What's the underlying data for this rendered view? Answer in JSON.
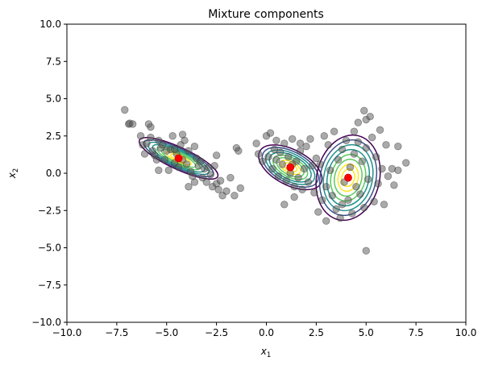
{
  "chart_data": {
    "type": "scatter",
    "title": "Mixture components",
    "xlabel": {
      "base": "x",
      "sub": "1"
    },
    "ylabel": {
      "base": "x",
      "sub": "2"
    },
    "xlim": [
      -10,
      10
    ],
    "ylim": [
      -10,
      10
    ],
    "xticks": [
      "−10.0",
      "−7.5",
      "−5.0",
      "−2.5",
      "0.0",
      "2.5",
      "5.0",
      "7.5",
      "10.0"
    ],
    "yticks": [
      "−10.0",
      "−7.5",
      "−5.0",
      "−2.5",
      "0.0",
      "2.5",
      "5.0",
      "7.5",
      "10.0"
    ],
    "grid": false,
    "point_color": "#555555",
    "mean_color": "#ff0000",
    "contour_colors": [
      "#440154",
      "#3b528b",
      "#21918c",
      "#5ec962",
      "#fde725"
    ],
    "components": [
      {
        "mean": [
          -4.4,
          1.0
        ],
        "sd_major": 1.05,
        "sd_minor": 0.3,
        "angle_deg": -32
      },
      {
        "mean": [
          1.2,
          0.4
        ],
        "sd_major": 0.85,
        "sd_minor": 0.48,
        "angle_deg": -35
      },
      {
        "mean": [
          4.1,
          -0.3
        ],
        "sd_major": 1.3,
        "sd_minor": 0.72,
        "angle_deg": 80
      }
    ],
    "points": [
      [
        -7.1,
        4.25
      ],
      [
        -6.9,
        3.3
      ],
      [
        -6.85,
        3.35
      ],
      [
        -6.7,
        3.3
      ],
      [
        -6.3,
        2.5
      ],
      [
        -6.2,
        1.9
      ],
      [
        -6.1,
        1.3
      ],
      [
        -6.0,
        2.0
      ],
      [
        -5.9,
        3.3
      ],
      [
        -5.8,
        3.1
      ],
      [
        -5.8,
        2.4
      ],
      [
        -5.7,
        1.5
      ],
      [
        -5.6,
        1.2
      ],
      [
        -5.5,
        0.9
      ],
      [
        -5.4,
        2.2
      ],
      [
        -5.3,
        1.7
      ],
      [
        -5.2,
        1.9
      ],
      [
        -5.1,
        0.9
      ],
      [
        -5.0,
        1.5
      ],
      [
        -4.9,
        0.2
      ],
      [
        -4.8,
        1.6
      ],
      [
        -4.7,
        2.5
      ],
      [
        -4.6,
        0.7
      ],
      [
        -4.5,
        1.3
      ],
      [
        -4.4,
        0.4
      ],
      [
        -4.3,
        1.9
      ],
      [
        -4.2,
        0.9
      ],
      [
        -4.1,
        2.2
      ],
      [
        -4.0,
        0.6
      ],
      [
        -3.9,
        1.5
      ],
      [
        -3.8,
        0.1
      ],
      [
        -3.7,
        -0.2
      ],
      [
        -3.6,
        1.8
      ],
      [
        -3.5,
        1.0
      ],
      [
        -3.4,
        0.5
      ],
      [
        -3.3,
        0.8
      ],
      [
        -3.2,
        -0.3
      ],
      [
        -3.1,
        0.3
      ],
      [
        -3.0,
        -0.6
      ],
      [
        -2.9,
        0.4
      ],
      [
        -2.8,
        -0.1
      ],
      [
        -2.7,
        -0.9
      ],
      [
        -2.6,
        0.5
      ],
      [
        -2.5,
        1.2
      ],
      [
        -2.5,
        -0.7
      ],
      [
        -2.4,
        -1.1
      ],
      [
        -2.3,
        -0.5
      ],
      [
        -2.2,
        -1.5
      ],
      [
        -2.0,
        -1.2
      ],
      [
        -1.8,
        -0.3
      ],
      [
        -1.6,
        -1.5
      ],
      [
        -1.5,
        1.7
      ],
      [
        -1.4,
        1.5
      ],
      [
        -1.3,
        -1.0
      ],
      [
        -3.9,
        -0.9
      ],
      [
        -4.6,
        1.6
      ],
      [
        -5.4,
        0.2
      ],
      [
        -4.2,
        2.6
      ],
      [
        -3.6,
        -0.6
      ],
      [
        -0.5,
        2.0
      ],
      [
        -0.4,
        1.3
      ],
      [
        -0.2,
        0.8
      ],
      [
        0.0,
        2.5
      ],
      [
        0.1,
        1.1
      ],
      [
        0.2,
        2.7
      ],
      [
        0.3,
        0.3
      ],
      [
        0.4,
        1.6
      ],
      [
        0.5,
        0.9
      ],
      [
        0.6,
        -0.2
      ],
      [
        0.7,
        1.4
      ],
      [
        0.8,
        0.6
      ],
      [
        0.9,
        2.0
      ],
      [
        1.0,
        -0.5
      ],
      [
        1.1,
        1.1
      ],
      [
        1.2,
        0.0
      ],
      [
        1.3,
        2.3
      ],
      [
        1.4,
        -0.9
      ],
      [
        1.5,
        0.8
      ],
      [
        1.6,
        -0.3
      ],
      [
        1.7,
        1.5
      ],
      [
        1.8,
        -1.1
      ],
      [
        1.9,
        0.3
      ],
      [
        2.0,
        1.8
      ],
      [
        2.1,
        -0.6
      ],
      [
        2.2,
        2.3
      ],
      [
        2.3,
        0.5
      ],
      [
        2.4,
        -1.3
      ],
      [
        2.5,
        1.0
      ],
      [
        1.4,
        -1.6
      ],
      [
        0.9,
        -2.1
      ],
      [
        1.7,
        2.0
      ],
      [
        0.5,
        2.2
      ],
      [
        1.3,
        0.6
      ],
      [
        2.6,
        -2.6
      ],
      [
        2.8,
        -1.8
      ],
      [
        2.9,
        2.5
      ],
      [
        3.0,
        -0.9
      ],
      [
        3.0,
        -3.2
      ],
      [
        3.1,
        1.9
      ],
      [
        3.2,
        0.2
      ],
      [
        3.3,
        -1.5
      ],
      [
        3.4,
        2.8
      ],
      [
        3.5,
        -2.4
      ],
      [
        3.6,
        0.9
      ],
      [
        3.7,
        -3.0
      ],
      [
        3.8,
        1.6
      ],
      [
        3.9,
        -0.6
      ],
      [
        4.0,
        2.2
      ],
      [
        4.1,
        -1.8
      ],
      [
        4.2,
        0.4
      ],
      [
        4.3,
        -2.7
      ],
      [
        4.4,
        1.3
      ],
      [
        4.5,
        -0.9
      ],
      [
        4.6,
        3.4
      ],
      [
        4.6,
        2.1
      ],
      [
        4.7,
        -1.4
      ],
      [
        4.8,
        0.8
      ],
      [
        4.9,
        4.2
      ],
      [
        4.9,
        -2.3
      ],
      [
        5.0,
        3.6
      ],
      [
        5.0,
        1.7
      ],
      [
        5.1,
        -0.4
      ],
      [
        5.2,
        3.8
      ],
      [
        5.3,
        2.4
      ],
      [
        5.4,
        -1.9
      ],
      [
        5.5,
        1.1
      ],
      [
        5.6,
        -0.7
      ],
      [
        5.7,
        2.9
      ],
      [
        5.8,
        0.3
      ],
      [
        5.9,
        -2.1
      ],
      [
        6.0,
        1.9
      ],
      [
        6.1,
        -0.2
      ],
      [
        6.3,
        0.3
      ],
      [
        6.4,
        -0.8
      ],
      [
        6.6,
        1.8
      ],
      [
        6.6,
        0.2
      ],
      [
        7.0,
        0.7
      ],
      [
        5.0,
        -5.2
      ],
      [
        2.7,
        0.6
      ],
      [
        3.8,
        -2.1
      ],
      [
        4.4,
        2.8
      ]
    ]
  }
}
